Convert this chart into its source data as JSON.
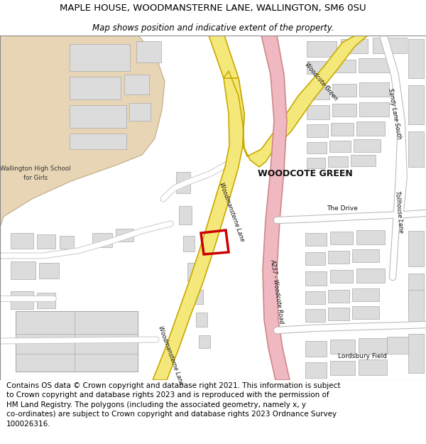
{
  "title_line1": "MAPLE HOUSE, WOODMANSTERNE LANE, WALLINGTON, SM6 0SU",
  "title_line2": "Map shows position and indicative extent of the property.",
  "footer_lines": [
    "Contains OS data © Crown copyright and database right 2021. This information is subject to Crown copyright and database rights 2023 and is reproduced with the permission of",
    "HM Land Registry. The polygons (including the associated geometry, namely x, y co-ordinates) are subject to Crown copyright and database rights 2023 Ordnance Survey",
    "100026316."
  ],
  "road_yellow_fill": "#f5e87a",
  "road_yellow_border": "#c8aa00",
  "road_pink_fill": "#f0b8c0",
  "road_pink_border": "#d08888",
  "building_fill": "#dcdcdc",
  "building_border": "#aaaaaa",
  "school_fill": "#e8d5b5",
  "school_border": "#c0aa80",
  "highlight_red": "#cc0000",
  "map_bg": "#ffffff",
  "white_road": "#ffffff",
  "gray_road_border": "#b8b8b8"
}
